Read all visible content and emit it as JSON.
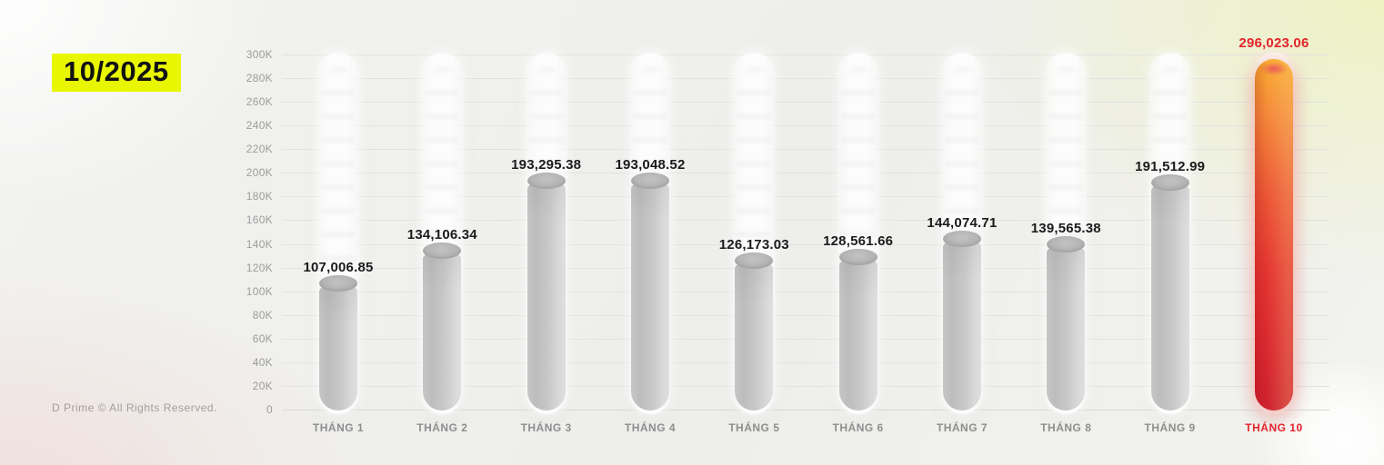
{
  "header": {
    "period": "10/2025",
    "badge_bg": "#e9f602"
  },
  "footer": {
    "copyright": "D Prime © All Rights Reserved."
  },
  "chart_data": {
    "type": "bar",
    "title": "10/2025",
    "categories": [
      "THÁNG 1",
      "THÁNG 2",
      "THÁNG 3",
      "THÁNG 4",
      "THÁNG 5",
      "THÁNG 6",
      "THÁNG 7",
      "THÁNG 8",
      "THÁNG 9",
      "THÁNG 10"
    ],
    "values": [
      107006.85,
      134106.34,
      193295.38,
      193048.52,
      126173.03,
      128561.66,
      144074.71,
      139565.38,
      191512.99,
      296023.06
    ],
    "value_labels": [
      "107,006.85",
      "134,106.34",
      "193,295.38",
      "193,048.52",
      "126,173.03",
      "128,561.66",
      "144,074.71",
      "139,565.38",
      "191,512.99",
      "296,023.06"
    ],
    "xlabel": "",
    "ylabel": "",
    "ylim": [
      0,
      300000
    ],
    "y_ticks": [
      "0",
      "20K",
      "40K",
      "60K",
      "80K",
      "100K",
      "120K",
      "140K",
      "160K",
      "180K",
      "200K",
      "220K",
      "240K",
      "260K",
      "280K",
      "300K"
    ],
    "grid": true,
    "legend": "none",
    "bar_style": "capsule-tube",
    "highlight_index": 9,
    "colors": {
      "highlight": "#e5232b",
      "highlight_gradient_top": "#f8ac30",
      "highlight_gradient_bottom": "#ce222f",
      "bar_gray": "#c6c6c6",
      "track_white": "#fcfcfc",
      "grid_line": "#e2e2e0",
      "axis_text": "#9c9c9c",
      "value_text": "#1b1b1b"
    }
  }
}
